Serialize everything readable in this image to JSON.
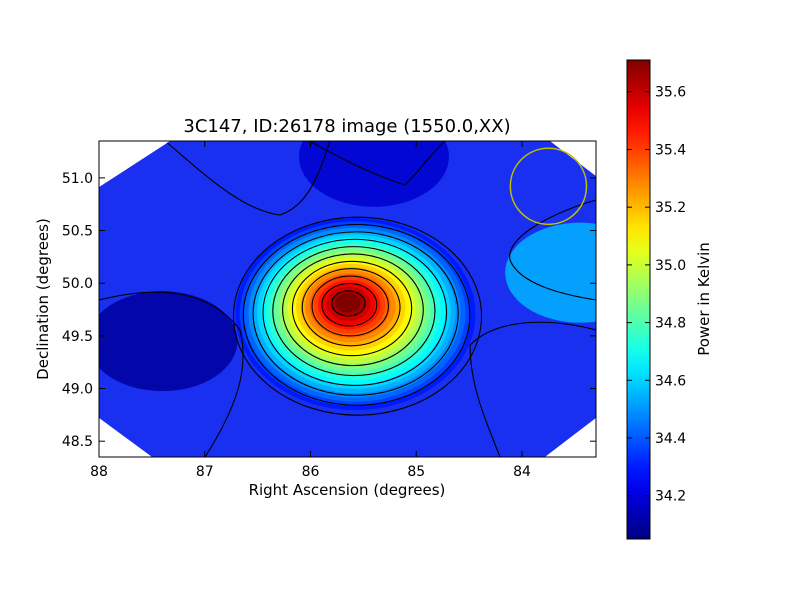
{
  "chart_data": {
    "type": "heatmap",
    "title": "3C147, ID:26178 image (1550.0,XX)",
    "xlabel": "Right Ascension (degrees)",
    "ylabel": "Declination (degrees)",
    "xlim": [
      88,
      83.3
    ],
    "ylim": [
      48.35,
      51.35
    ],
    "x_ticks": [
      "88",
      "87",
      "86",
      "85",
      "84"
    ],
    "y_ticks": [
      "48.5",
      "49.0",
      "49.5",
      "50.0",
      "50.5",
      "51.0"
    ],
    "grid": false,
    "colormap": "jet",
    "colorbar": {
      "label": "Power in Kelvin",
      "range": [
        34.05,
        35.71
      ],
      "ticks": [
        "34.2",
        "34.4",
        "34.6",
        "34.8",
        "35.0",
        "35.2",
        "35.4",
        "35.6"
      ]
    },
    "peak": {
      "ra": 85.65,
      "dec": 49.82,
      "value": 35.71
    },
    "features": [
      {
        "kind": "source-peak",
        "ra": 85.65,
        "dec": 49.82,
        "value": 35.71
      },
      {
        "kind": "brighter-patch",
        "ra": 83.45,
        "dec": 50.1,
        "value": 34.55
      },
      {
        "kind": "trough",
        "ra": 87.4,
        "dec": 49.45,
        "value": 34.1
      },
      {
        "kind": "trough",
        "ra": 85.4,
        "dec": 51.2,
        "value": 34.18
      }
    ],
    "circle_marker": {
      "ra": 83.75,
      "dec": 50.92,
      "radius_deg": 0.36,
      "color": "#bfbf00"
    },
    "contour_color": "#000000"
  }
}
